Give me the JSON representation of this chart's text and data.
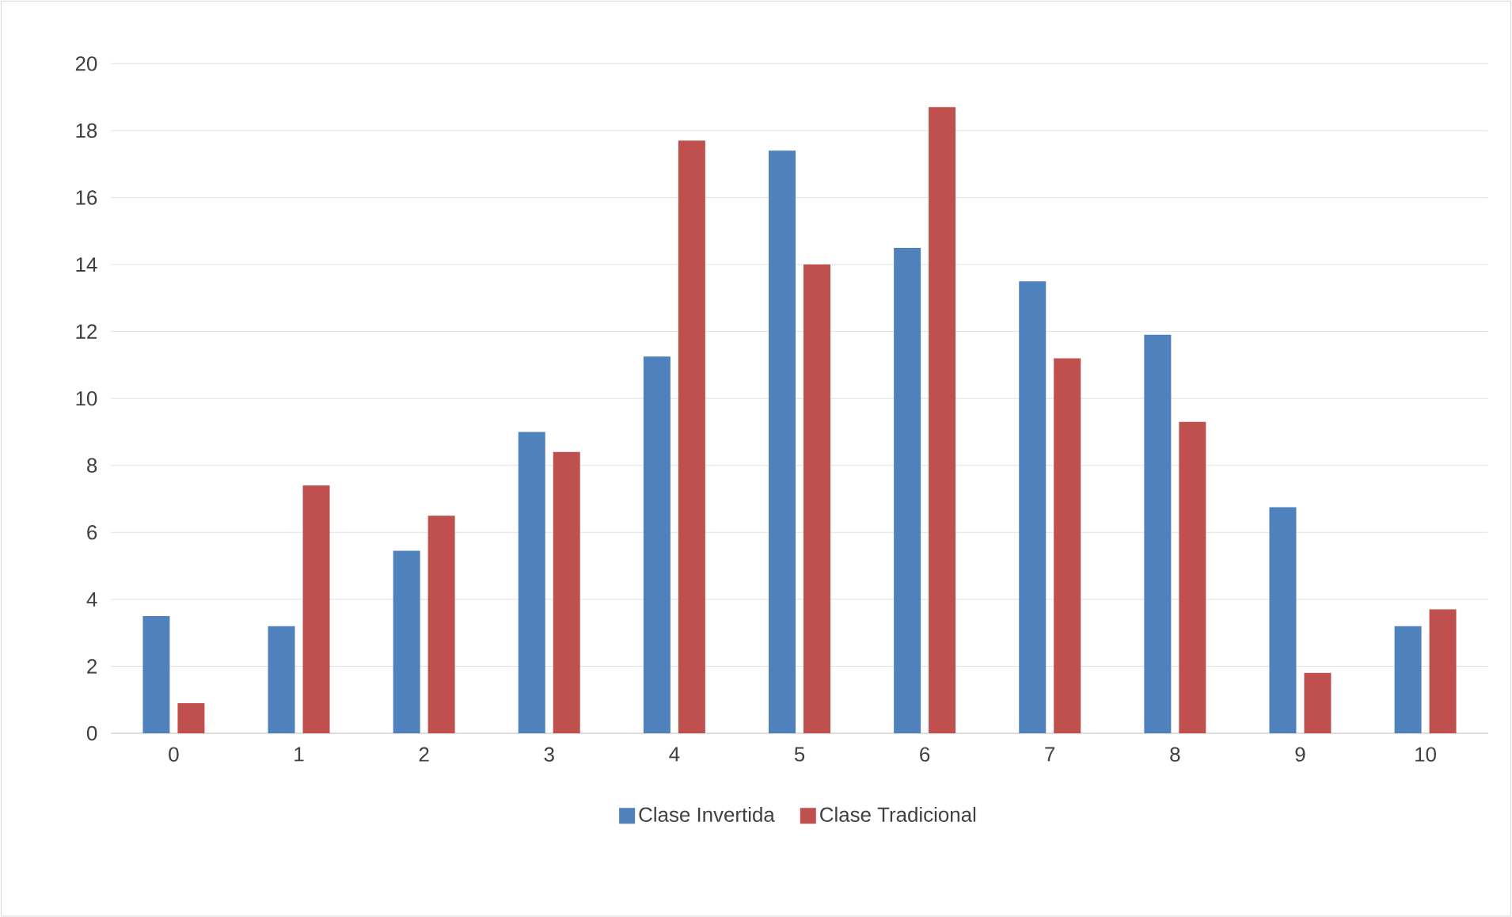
{
  "chart_data": {
    "type": "bar",
    "categories": [
      "0",
      "1",
      "2",
      "3",
      "4",
      "5",
      "6",
      "7",
      "8",
      "9",
      "10"
    ],
    "series": [
      {
        "name": "Clase Invertida",
        "color": "#4f81bd",
        "values": [
          3.5,
          3.2,
          5.45,
          9.0,
          11.25,
          17.4,
          14.5,
          13.5,
          11.9,
          6.75,
          3.2
        ]
      },
      {
        "name": "Clase Tradicional",
        "color": "#c0504d",
        "values": [
          0.9,
          7.4,
          6.5,
          8.4,
          17.7,
          14.0,
          18.7,
          11.2,
          9.3,
          1.8,
          3.7
        ]
      }
    ],
    "ylim": [
      0,
      20
    ],
    "yticks": [
      0,
      2,
      4,
      6,
      8,
      10,
      12,
      14,
      16,
      18,
      20
    ],
    "grid": "y",
    "legend": "bottom"
  }
}
